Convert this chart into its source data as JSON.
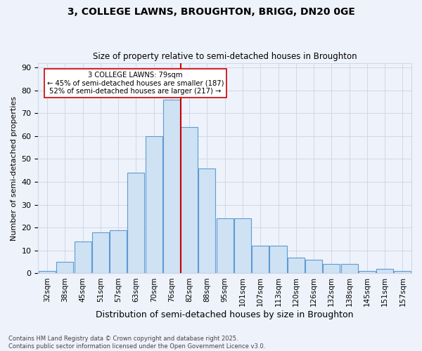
{
  "title1": "3, COLLEGE LAWNS, BROUGHTON, BRIGG, DN20 0GE",
  "title2": "Size of property relative to semi-detached houses in Broughton",
  "xlabel": "Distribution of semi-detached houses by size in Broughton",
  "ylabel": "Number of semi-detached properties",
  "footer": "Contains HM Land Registry data © Crown copyright and database right 2025.\nContains public sector information licensed under the Open Government Licence v3.0.",
  "bin_labels": [
    "32sqm",
    "38sqm",
    "45sqm",
    "51sqm",
    "57sqm",
    "63sqm",
    "70sqm",
    "76sqm",
    "82sqm",
    "88sqm",
    "95sqm",
    "101sqm",
    "107sqm",
    "113sqm",
    "120sqm",
    "126sqm",
    "132sqm",
    "138sqm",
    "145sqm",
    "151sqm",
    "157sqm"
  ],
  "counts": [
    1,
    5,
    14,
    18,
    19,
    44,
    60,
    76,
    64,
    46,
    24,
    24,
    12,
    12,
    7,
    6,
    4,
    4,
    1,
    2,
    1
  ],
  "bar_facecolor": "#cfe2f3",
  "bar_edgecolor": "#5b9bd5",
  "grid_color": "#d0d8e8",
  "bg_color": "#eef2fb",
  "marker_bin_index": 7,
  "marker_color": "#cc0000",
  "annotation_text": "3 COLLEGE LAWNS: 79sqm\n← 45% of semi-detached houses are smaller (187)\n52% of semi-detached houses are larger (217) →",
  "annotation_box_color": "#ffffff",
  "annotation_box_edgecolor": "#cc0000",
  "ylim": [
    0,
    92
  ],
  "yticks": [
    0,
    10,
    20,
    30,
    40,
    50,
    60,
    70,
    80,
    90
  ]
}
